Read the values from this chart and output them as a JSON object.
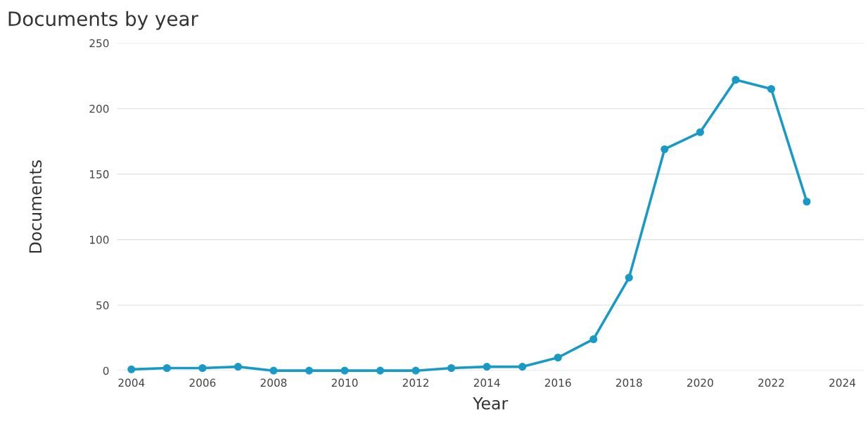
{
  "chart_data": {
    "type": "line",
    "title": "Documents by year",
    "xlabel": "Year",
    "ylabel": "Documents",
    "x": [
      2004,
      2005,
      2006,
      2007,
      2008,
      2009,
      2010,
      2011,
      2012,
      2013,
      2014,
      2015,
      2016,
      2017,
      2018,
      2019,
      2020,
      2021,
      2022,
      2023
    ],
    "series": [
      {
        "color": "#199ac6",
        "values": [
          1,
          2,
          2,
          3,
          0,
          0,
          0,
          0,
          0,
          2,
          3,
          3,
          10,
          24,
          71,
          169,
          182,
          222,
          215,
          129
        ]
      }
    ],
    "xlim": [
      2003.6,
      2024.6
    ],
    "xticks": [
      2004,
      2006,
      2008,
      2010,
      2012,
      2014,
      2016,
      2018,
      2020,
      2022,
      2024
    ],
    "ylim": [
      0,
      250
    ],
    "yticks": [
      0,
      50,
      100,
      150,
      200,
      250
    ],
    "grid": "y",
    "marker": "circle",
    "line_style": "solid"
  }
}
